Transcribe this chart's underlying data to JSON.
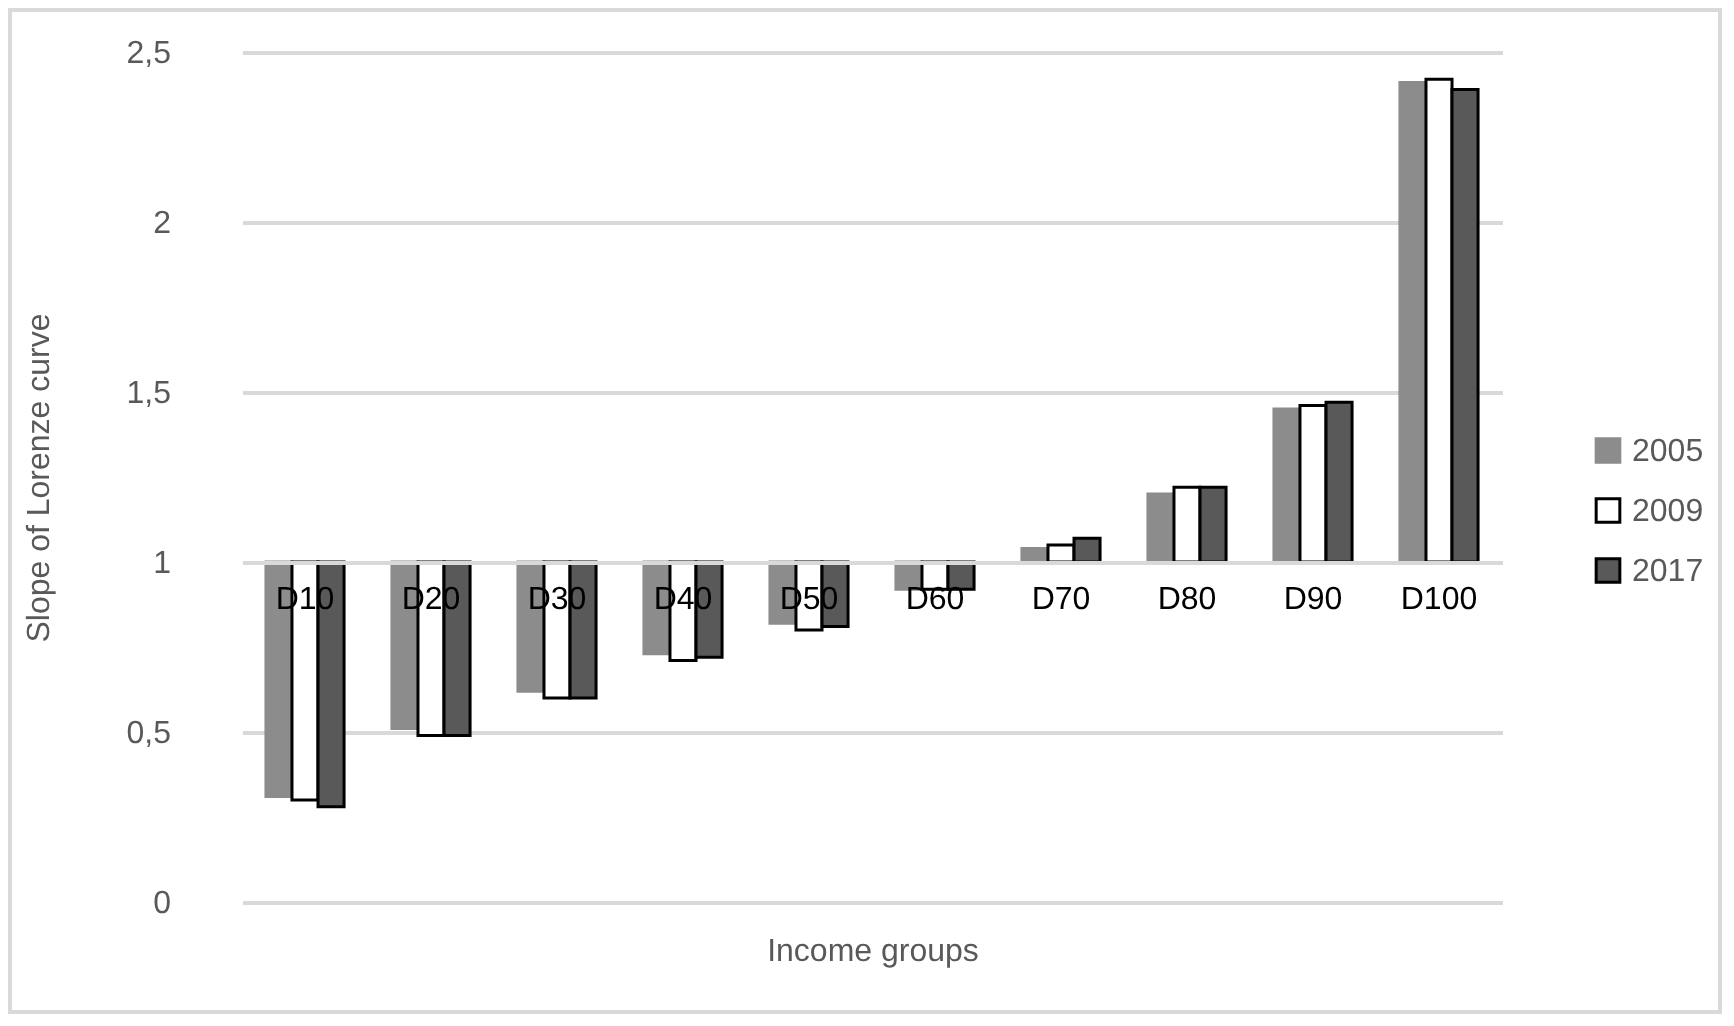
{
  "chart_data": {
    "type": "bar",
    "xlabel": "Income groups",
    "ylabel": "Slope of Lorenze curve",
    "categories": [
      "D10",
      "D20",
      "D30",
      "D40",
      "D50",
      "D60",
      "D70",
      "D80",
      "D90",
      "D100"
    ],
    "series": [
      {
        "name": "2005",
        "color": "#8c8c8c",
        "base": [
          1,
          1,
          1,
          1,
          1,
          1,
          1,
          1,
          1,
          1
        ],
        "values": [
          -0.69,
          -0.49,
          -0.38,
          -0.27,
          -0.18,
          -0.08,
          0.04,
          0.2,
          0.45,
          1.41
        ]
      },
      {
        "name": "2009",
        "color": "#ffffff",
        "base": [
          1,
          1,
          1,
          1,
          1,
          1,
          1,
          1,
          1,
          1
        ],
        "values": [
          -0.7,
          -0.51,
          -0.4,
          -0.29,
          -0.2,
          -0.08,
          0.05,
          0.22,
          0.46,
          1.42
        ]
      },
      {
        "name": "2017",
        "color": "#595959",
        "base": [
          1,
          1,
          1,
          1,
          1,
          1,
          1,
          1,
          1,
          1
        ],
        "values": [
          -0.72,
          -0.51,
          -0.4,
          -0.28,
          -0.19,
          -0.08,
          0.07,
          0.22,
          0.47,
          1.39
        ]
      }
    ],
    "ylim": [
      0,
      2.5
    ],
    "yticks": [
      0,
      {
        "value": 0.5,
        "label": "0,5"
      },
      1,
      {
        "value": 1.5,
        "label": "1,5"
      },
      2,
      {
        "value": 2.5,
        "label": "2,5"
      }
    ],
    "grid": "y",
    "legend": "right"
  }
}
